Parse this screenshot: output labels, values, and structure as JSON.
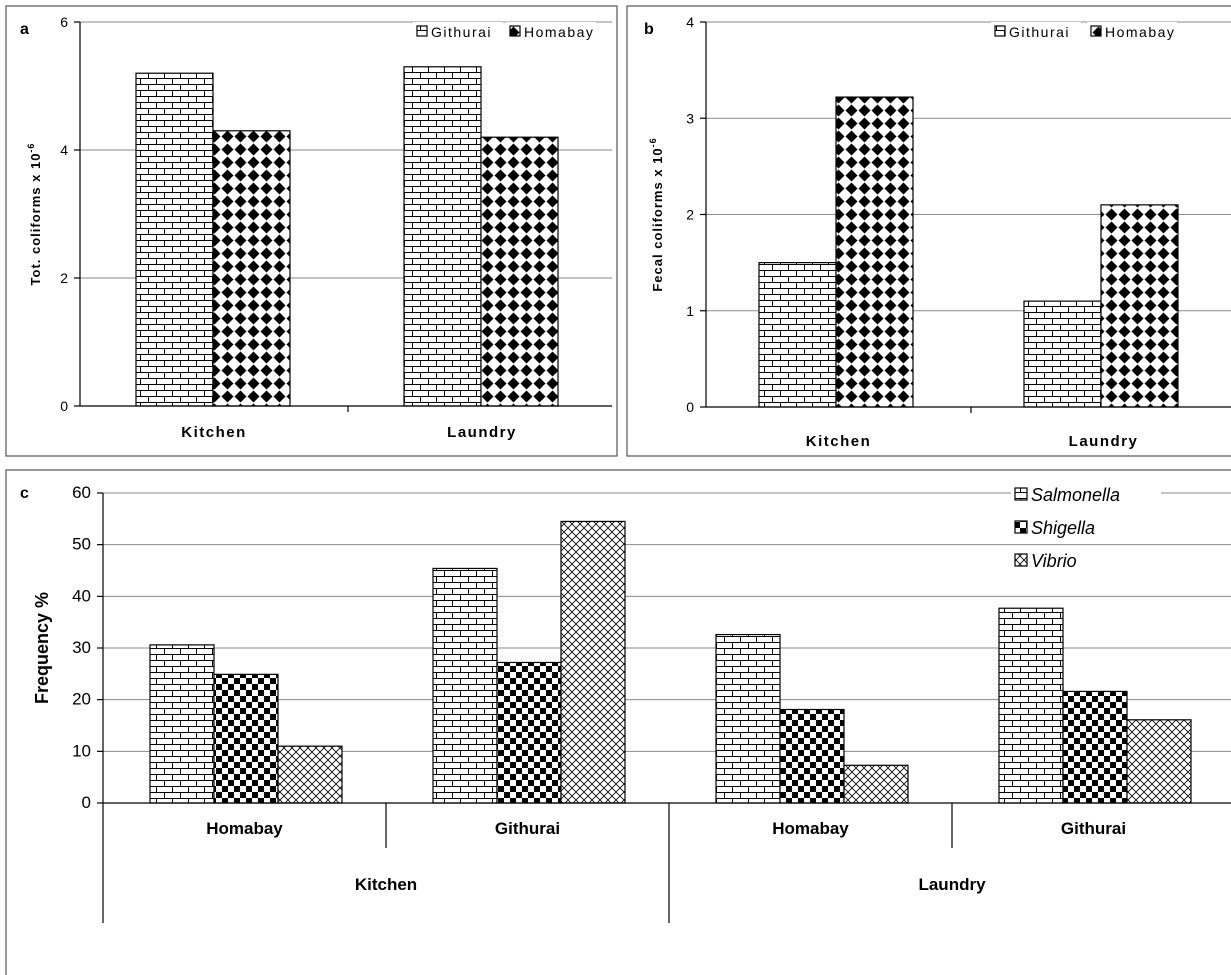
{
  "chart_data": [
    {
      "panel": "a",
      "type": "bar",
      "categories": [
        "Kitchen",
        "Laundry"
      ],
      "series": [
        {
          "name": "Githurai",
          "values": [
            5.2,
            5.3
          ],
          "pattern": "brick"
        },
        {
          "name": "Homabay",
          "values": [
            4.3,
            4.2
          ],
          "pattern": "diamond"
        }
      ],
      "ylabel": "Tot. coliforms x 10",
      "ylabel_sup": "-6",
      "ylim": [
        0,
        6
      ],
      "yticks": [
        "0",
        "2",
        "4",
        "6"
      ],
      "grid": true,
      "legend": "top-right"
    },
    {
      "panel": "b",
      "type": "bar",
      "categories": [
        "Kitchen",
        "Laundry"
      ],
      "series": [
        {
          "name": "Githurai",
          "values": [
            1.5,
            1.1
          ],
          "pattern": "brick"
        },
        {
          "name": "Homabay",
          "values": [
            3.22,
            2.1
          ],
          "pattern": "diamond"
        }
      ],
      "ylabel": "Fecal coliforms x 10",
      "ylabel_sup": "-6",
      "ylim": [
        0,
        4
      ],
      "yticks": [
        "0",
        "1",
        "2",
        "3",
        "4"
      ],
      "grid": true,
      "legend": "top-right"
    },
    {
      "panel": "c",
      "type": "bar",
      "categories": [
        "Homabay",
        "Githurai",
        "Homabay",
        "Githurai"
      ],
      "groups": [
        "Kitchen",
        "Laundry"
      ],
      "series": [
        {
          "name": "Salmonella",
          "values": [
            30.6,
            45.4,
            32.6,
            37.7
          ],
          "pattern": "brick"
        },
        {
          "name": "Shigella",
          "values": [
            24.9,
            27.2,
            18.1,
            21.6
          ],
          "pattern": "checker"
        },
        {
          "name": "Vibrio",
          "values": [
            11.0,
            54.5,
            7.3,
            16.1
          ],
          "pattern": "crosshatch"
        }
      ],
      "ylabel": "Frequency %",
      "ylim": [
        0,
        60
      ],
      "yticks": [
        "0",
        "10",
        "20",
        "30",
        "40",
        "50",
        "60"
      ],
      "grid": true,
      "legend": "top-right"
    }
  ]
}
